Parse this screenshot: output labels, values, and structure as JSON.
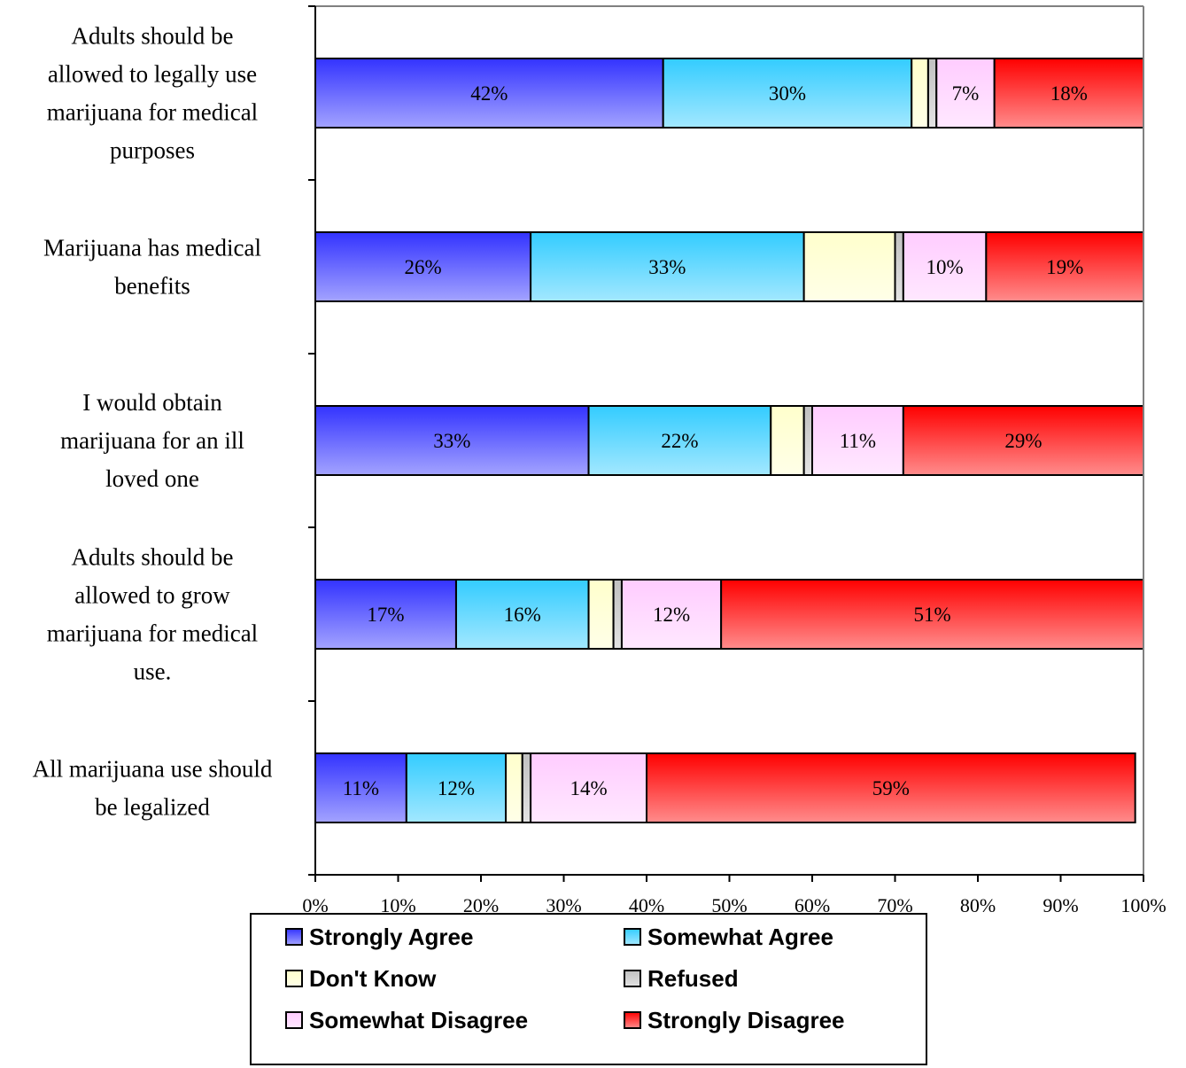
{
  "chart_data": {
    "type": "bar",
    "orientation": "horizontal",
    "stacked": true,
    "categories": [
      "Adults should be allowed to legally use marijuana for medical purposes",
      "Marijuana has medical benefits",
      "I would  obtain marijuana for an ill loved one",
      "Adults should be allowed to grow marijuana for medical use.",
      "All marijuana use should be legalized"
    ],
    "category_lines": [
      [
        "Adults should be",
        "allowed to legally use",
        "marijuana for medical",
        "purposes"
      ],
      [
        "Marijuana has medical",
        "benefits"
      ],
      [
        "I would  obtain",
        "marijuana for an ill",
        "loved one"
      ],
      [
        "Adults should be",
        "allowed to grow",
        "marijuana for medical",
        "use."
      ],
      [
        "All marijuana use should",
        "be legalized"
      ]
    ],
    "series": [
      {
        "name": "Strongly Agree",
        "color": "#3333ff",
        "values": [
          42,
          26,
          33,
          17,
          11
        ],
        "labels": [
          "42%",
          "26%",
          "33%",
          "17%",
          "11%"
        ]
      },
      {
        "name": "Somewhat Agree",
        "color": "#33ccff",
        "values": [
          30,
          33,
          22,
          16,
          12
        ],
        "labels": [
          "30%",
          "33%",
          "22%",
          "16%",
          "12%"
        ]
      },
      {
        "name": "Don't Know",
        "color": "#ffffcc",
        "values": [
          2,
          11,
          4,
          3,
          2
        ],
        "labels": [
          "",
          "",
          "",
          "",
          ""
        ]
      },
      {
        "name": "Refused",
        "color": "#c0c0c0",
        "values": [
          1,
          1,
          1,
          1,
          1
        ],
        "labels": [
          "",
          "",
          "",
          "",
          ""
        ]
      },
      {
        "name": "Somewhat Disagree",
        "color": "#ffccff",
        "values": [
          7,
          10,
          11,
          12,
          14
        ],
        "labels": [
          "7%",
          "10%",
          "11%",
          "12%",
          "14%"
        ]
      },
      {
        "name": "Strongly Disagree",
        "color": "#ff0000",
        "values": [
          18,
          19,
          29,
          51,
          59
        ],
        "labels": [
          "18%",
          "19%",
          "29%",
          "51%",
          "59%"
        ]
      }
    ],
    "xlim": [
      0,
      100
    ],
    "x_ticks": [
      "0%",
      "10%",
      "20%",
      "30%",
      "40%",
      "50%",
      "60%",
      "70%",
      "80%",
      "90%",
      "100%"
    ],
    "title": "",
    "xlabel": "",
    "ylabel": "",
    "grid": false,
    "legend_position": "bottom"
  }
}
